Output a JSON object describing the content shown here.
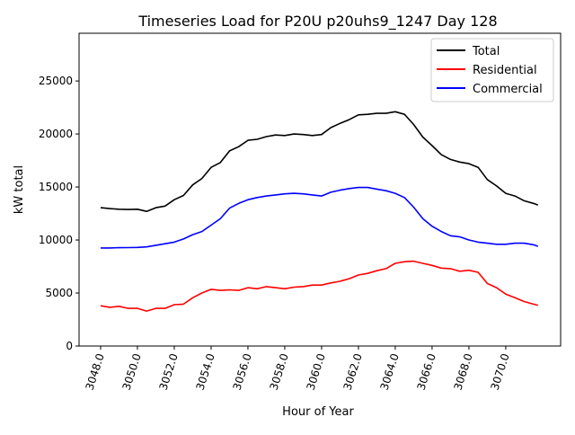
{
  "chart_data": {
    "type": "line",
    "title": "Timeseries Load for P20U p20uhs9_1247  Day 128",
    "xlabel": "Hour of Year",
    "ylabel": "kW total",
    "xlim": [
      3046.83,
      3072.98
    ],
    "ylim": [
      0,
      29500
    ],
    "xticks": [
      3048,
      3050,
      3052,
      3054,
      3056,
      3058,
      3060,
      3062,
      3064,
      3066,
      3068,
      3070
    ],
    "xtick_labels": [
      "3048.0",
      "3050.0",
      "3052.0",
      "3054.0",
      "3056.0",
      "3058.0",
      "3060.0",
      "3062.0",
      "3064.0",
      "3066.0",
      "3068.0",
      "3070.0"
    ],
    "yticks": [
      0,
      5000,
      10000,
      15000,
      20000,
      25000
    ],
    "ytick_labels": [
      "0",
      "5000",
      "10000",
      "15000",
      "20000",
      "25000"
    ],
    "grid": false,
    "legend_placement": "top-right",
    "x": [
      3048,
      3048.5,
      3049,
      3049.5,
      3050,
      3050.5,
      3051,
      3051.5,
      3052,
      3052.5,
      3053,
      3053.5,
      3054,
      3054.5,
      3055,
      3055.5,
      3056,
      3056.5,
      3057,
      3057.5,
      3058,
      3058.5,
      3059,
      3059.5,
      3060,
      3060.5,
      3061,
      3061.5,
      3062,
      3062.5,
      3063,
      3063.5,
      3064,
      3064.5,
      3065,
      3065.5,
      3066,
      3066.5,
      3067,
      3067.5,
      3068,
      3068.5,
      3069,
      3069.5,
      3070,
      3070.5,
      3071,
      3071.5,
      3071.75
    ],
    "series": [
      {
        "name": "Total",
        "color": "#000000",
        "values": [
          13050,
          12960,
          12900,
          12880,
          12900,
          12700,
          13050,
          13200,
          13800,
          14200,
          15200,
          15800,
          16850,
          17300,
          18400,
          18800,
          19400,
          19500,
          19750,
          19900,
          19850,
          20000,
          19950,
          19850,
          19950,
          20600,
          21000,
          21350,
          21800,
          21850,
          21950,
          21950,
          22100,
          21850,
          20900,
          19700,
          18900,
          18050,
          17600,
          17350,
          17200,
          16850,
          15700,
          15100,
          14400,
          14150,
          13700,
          13450,
          13300
        ]
      },
      {
        "name": "Residential",
        "color": "#ff0000",
        "values": [
          3800,
          3650,
          3750,
          3550,
          3550,
          3300,
          3550,
          3550,
          3900,
          3950,
          4550,
          5000,
          5350,
          5250,
          5300,
          5250,
          5500,
          5400,
          5600,
          5500,
          5400,
          5550,
          5600,
          5750,
          5750,
          5950,
          6100,
          6350,
          6700,
          6850,
          7100,
          7300,
          7800,
          7950,
          8000,
          7800,
          7600,
          7350,
          7300,
          7050,
          7150,
          6950,
          5900,
          5500,
          4900,
          4550,
          4200,
          3950,
          3850
        ]
      },
      {
        "name": "Commercial",
        "color": "#0000ff",
        "values": [
          9250,
          9250,
          9270,
          9280,
          9300,
          9350,
          9500,
          9650,
          9800,
          10100,
          10500,
          10800,
          11400,
          12000,
          13000,
          13450,
          13800,
          14000,
          14150,
          14250,
          14350,
          14400,
          14350,
          14250,
          14150,
          14500,
          14700,
          14850,
          14950,
          14950,
          14800,
          14650,
          14400,
          14000,
          13100,
          12000,
          11300,
          10800,
          10400,
          10300,
          10000,
          9800,
          9700,
          9600,
          9600,
          9700,
          9700,
          9550,
          9400
        ]
      }
    ]
  }
}
